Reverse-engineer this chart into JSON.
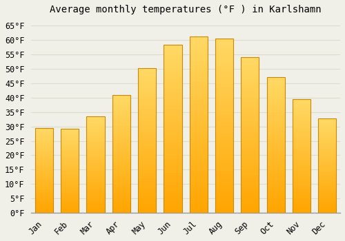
{
  "title": "Average monthly temperatures (°F ) in Karlshamn",
  "months": [
    "Jan",
    "Feb",
    "Mar",
    "Apr",
    "May",
    "Jun",
    "Jul",
    "Aug",
    "Sep",
    "Oct",
    "Nov",
    "Dec"
  ],
  "values": [
    29.5,
    29.3,
    33.6,
    40.9,
    50.2,
    58.3,
    61.3,
    60.6,
    54.1,
    47.1,
    39.4,
    32.7
  ],
  "bar_color_top": "#FFD966",
  "bar_color_bottom": "#FFA500",
  "bar_edge_color": "#CC8800",
  "background_color": "#F0F0E8",
  "grid_color": "#DDDDCC",
  "yticks": [
    0,
    5,
    10,
    15,
    20,
    25,
    30,
    35,
    40,
    45,
    50,
    55,
    60,
    65
  ],
  "ylim": [
    0,
    67
  ],
  "title_fontsize": 10,
  "tick_fontsize": 8.5
}
